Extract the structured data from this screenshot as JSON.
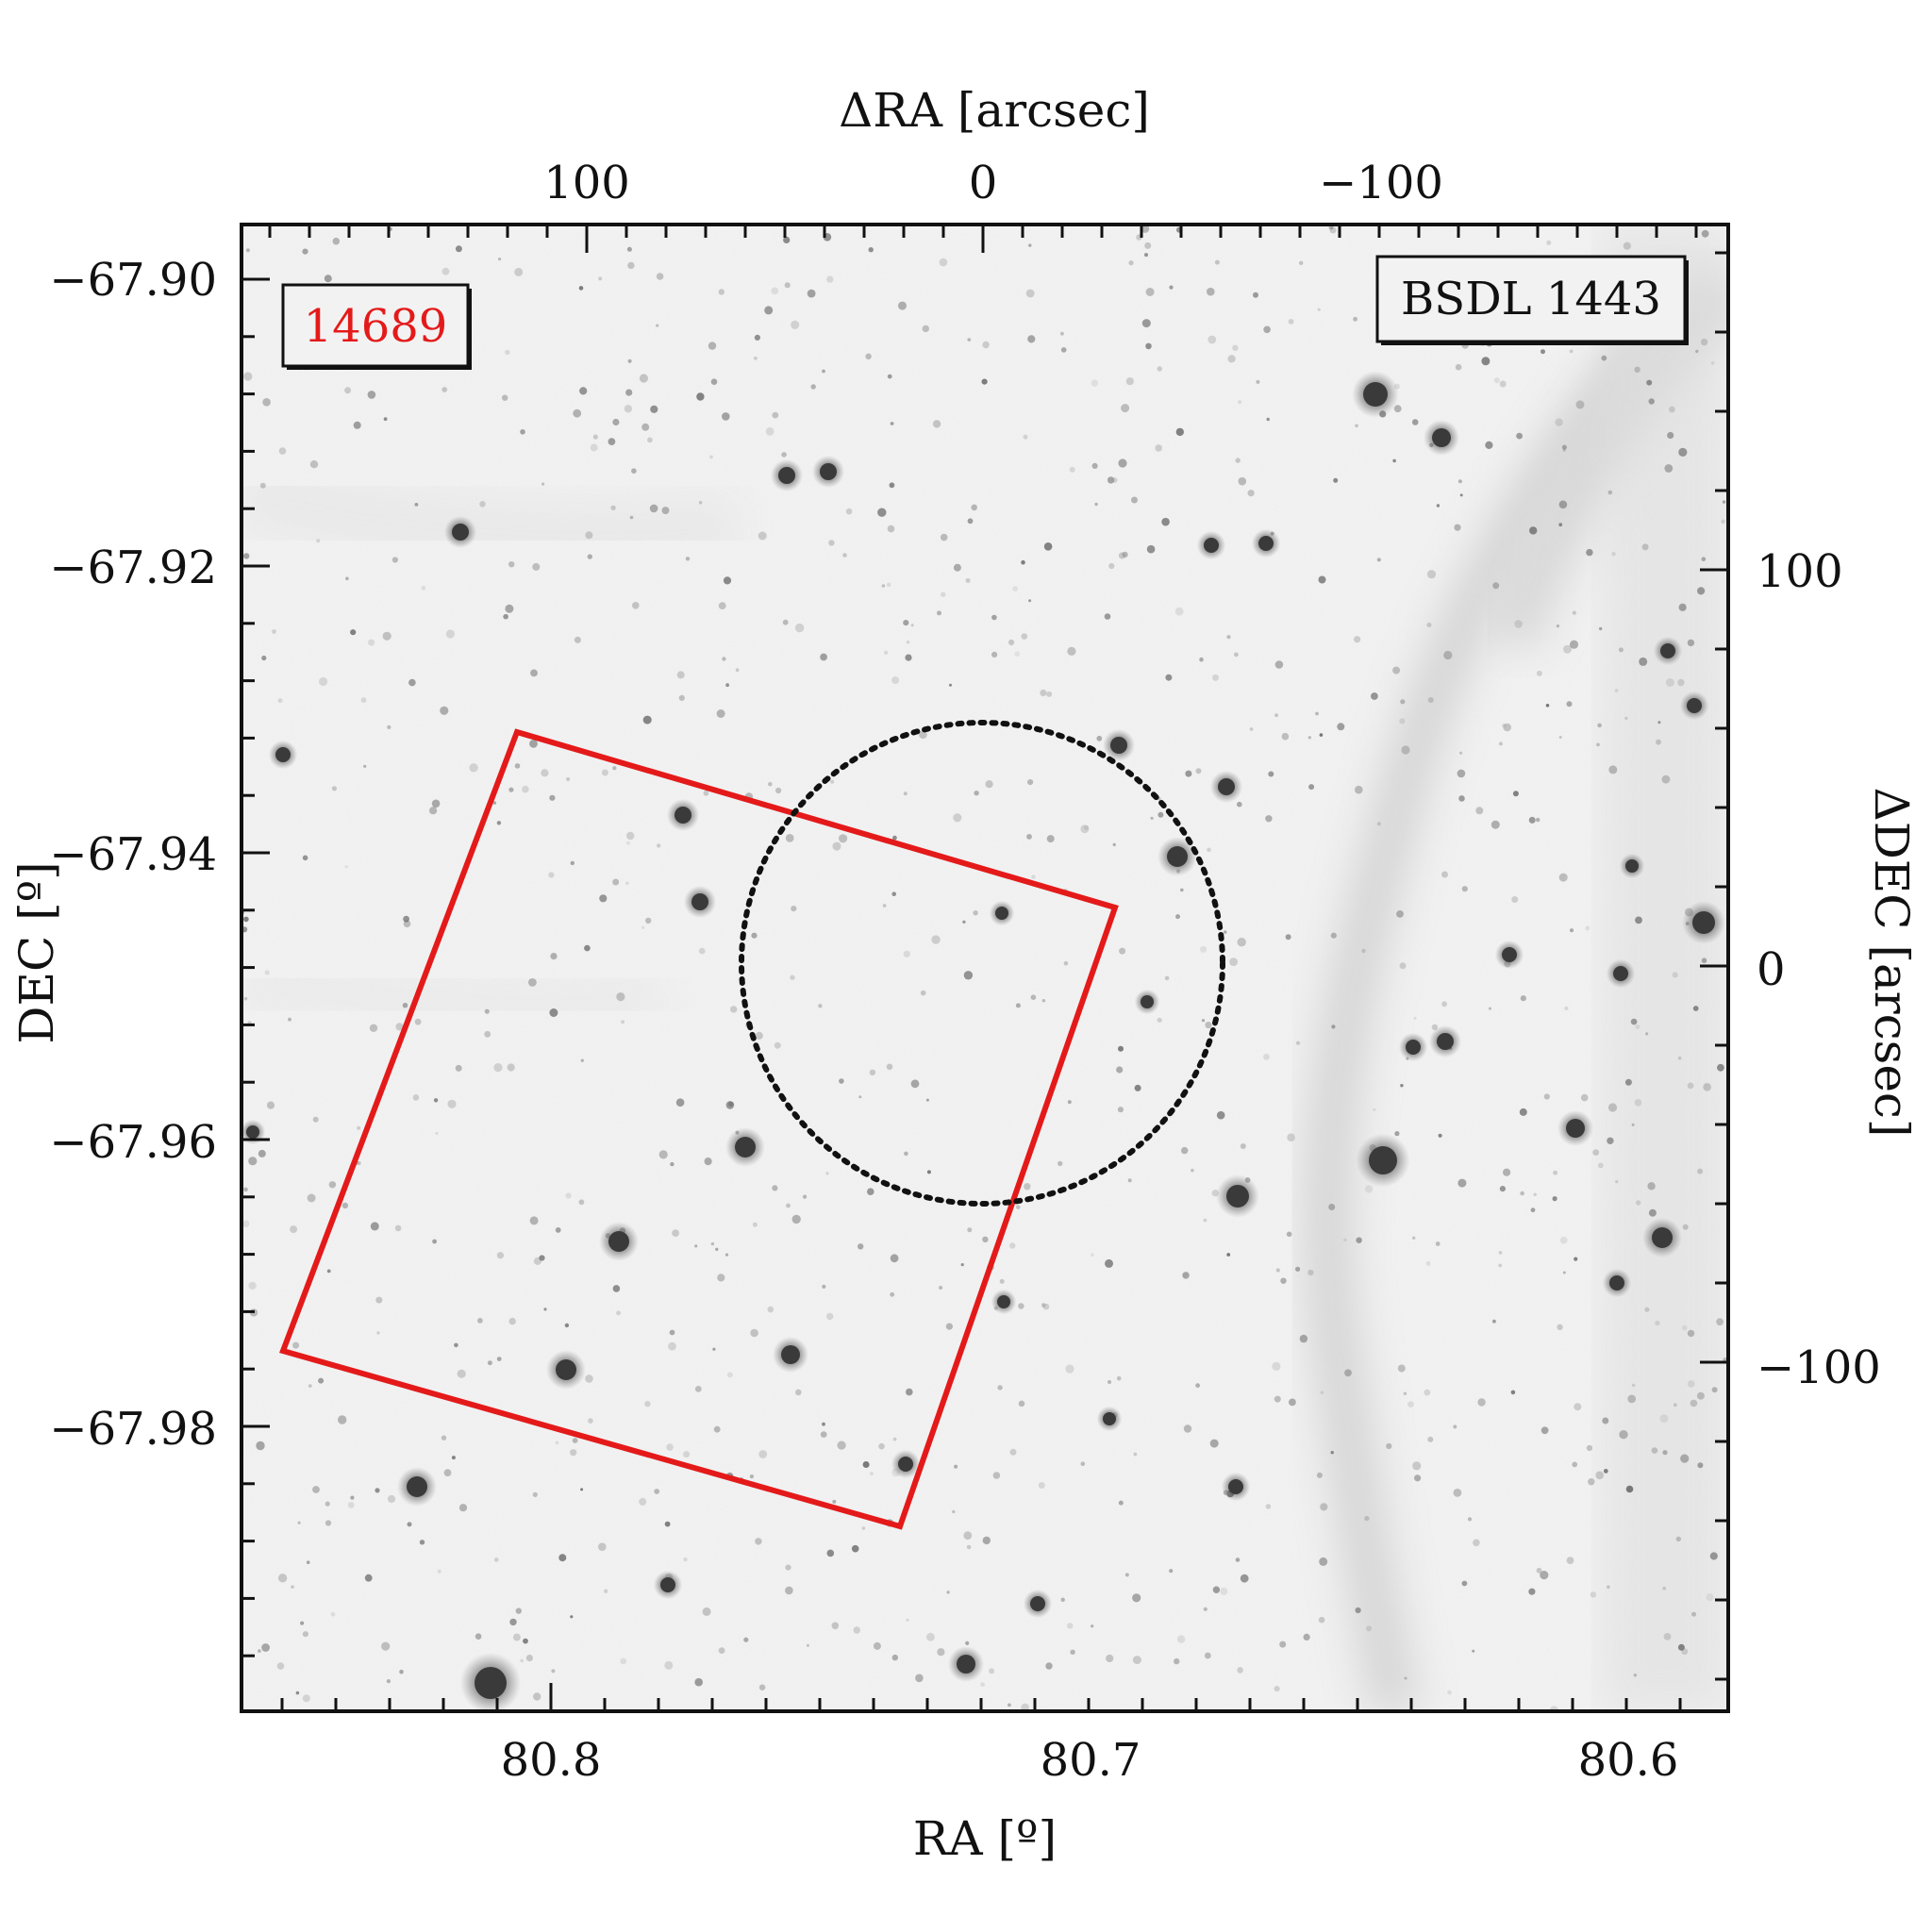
{
  "figure": {
    "id_label": "14689",
    "id_label_color": "#e41a1a",
    "object_label": "BSDL 1443",
    "bottom_axis": {
      "title": "RA [º]",
      "ticks": [
        "80.8",
        "80.7",
        "80.6"
      ]
    },
    "top_axis": {
      "title": "ΔRA [arcsec]",
      "ticks": [
        "100",
        "0",
        "−100"
      ]
    },
    "left_axis": {
      "title": "DEC [º]",
      "ticks": [
        "−67.90",
        "−67.92",
        "−67.94",
        "−67.96",
        "−67.98"
      ]
    },
    "right_axis": {
      "title": "ΔDEC [arcsec]",
      "ticks": [
        "100",
        "0",
        "−100"
      ]
    },
    "overlays": {
      "footprint_color": "#e41a1a",
      "circle_style": "dotted",
      "circle_color": "#111111"
    },
    "image": {
      "type": "inverted grayscale star field",
      "nebula": "diagonal filament on right side"
    }
  }
}
